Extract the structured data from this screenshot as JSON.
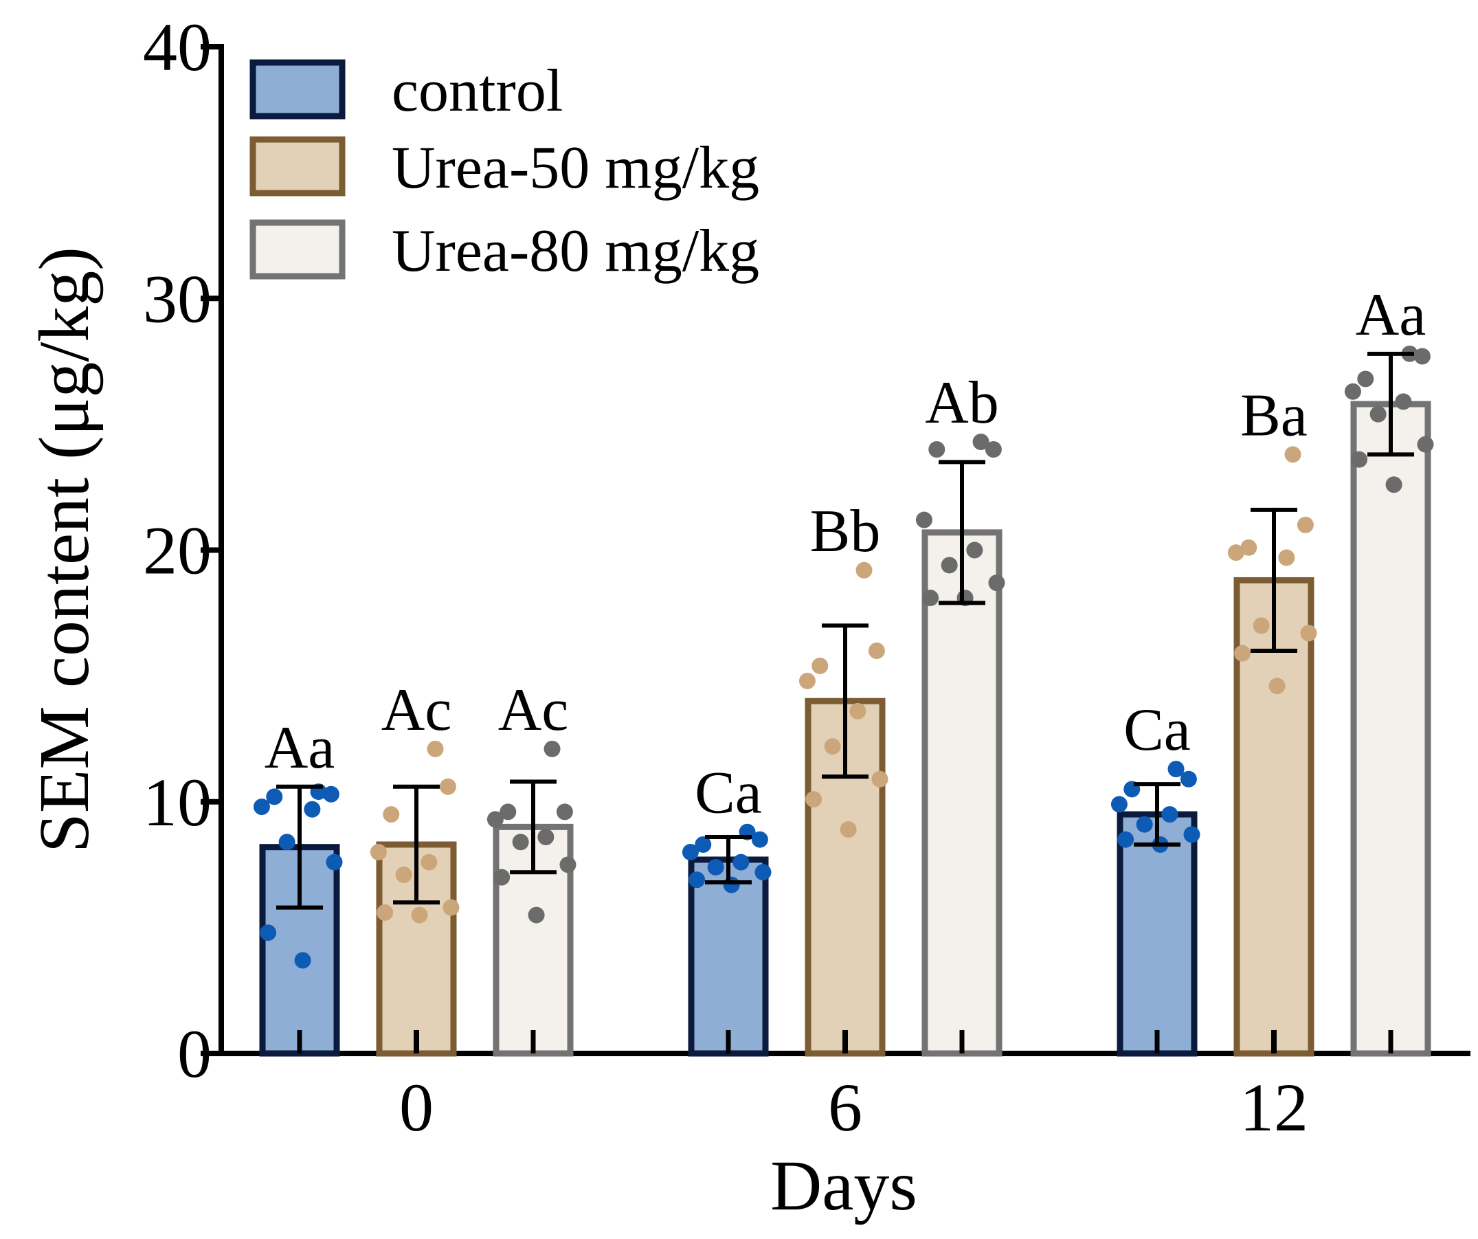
{
  "chart_data": {
    "type": "bar",
    "title": "",
    "xlabel": "Days",
    "ylabel": "SEM content (μg/kg)",
    "ylim": [
      0,
      40
    ],
    "yticks": [
      0,
      10,
      20,
      30,
      40
    ],
    "categories": [
      "0",
      "6",
      "12"
    ],
    "grid": false,
    "legend_position": "top-left",
    "series": [
      {
        "name": "control",
        "fill": "#8eaed6",
        "stroke": "#0b1b3d",
        "point_color": "#0d5bb5",
        "values": [
          8.2,
          7.7,
          9.5
        ],
        "errors": [
          2.4,
          0.9,
          1.2
        ],
        "labels": [
          "Aa",
          "Ca",
          "Ca"
        ],
        "points": [
          [
            10.4,
            10.3,
            10.2,
            9.8,
            9.7,
            8.4,
            7.6,
            4.8,
            3.7
          ],
          [
            8.8,
            8.5,
            8.3,
            8.0,
            7.6,
            7.4,
            7.2,
            6.9,
            6.7
          ],
          [
            11.3,
            10.9,
            10.5,
            9.9,
            9.5,
            9.1,
            8.7,
            8.5,
            8.3
          ]
        ]
      },
      {
        "name": "Urea-50 mg/kg",
        "fill": "#e3d1b7",
        "stroke": "#7c5c33",
        "point_color": "#cba67a",
        "values": [
          8.3,
          14.0,
          18.8
        ],
        "errors": [
          2.3,
          3.0,
          2.8
        ],
        "labels": [
          "Ac",
          "Bb",
          "Ba"
        ],
        "points": [
          [
            12.1,
            10.6,
            9.5,
            8.0,
            7.6,
            7.1,
            5.8,
            5.6,
            5.5
          ],
          [
            19.2,
            16.0,
            15.4,
            14.8,
            13.6,
            12.2,
            10.9,
            10.1,
            8.9
          ],
          [
            23.8,
            21.0,
            20.1,
            19.9,
            19.7,
            17.0,
            16.7,
            15.9,
            14.6
          ]
        ]
      },
      {
        "name": "Urea-80 mg/kg",
        "fill": "#f4f1ec",
        "stroke": "#737373",
        "point_color": "#6b6b6b",
        "values": [
          9.0,
          20.7,
          25.8
        ],
        "errors": [
          1.8,
          2.8,
          2.0
        ],
        "labels": [
          "Ac",
          "Ab",
          "Aa"
        ],
        "points": [
          [
            12.1,
            9.6,
            9.6,
            9.3,
            8.6,
            8.4,
            7.5,
            7.0,
            5.5
          ],
          [
            24.3,
            24.0,
            24.0,
            21.2,
            20.0,
            19.4,
            18.7,
            18.1,
            18.1
          ],
          [
            27.8,
            27.7,
            26.8,
            26.3,
            25.9,
            25.4,
            24.2,
            23.6,
            22.6
          ]
        ]
      }
    ]
  }
}
